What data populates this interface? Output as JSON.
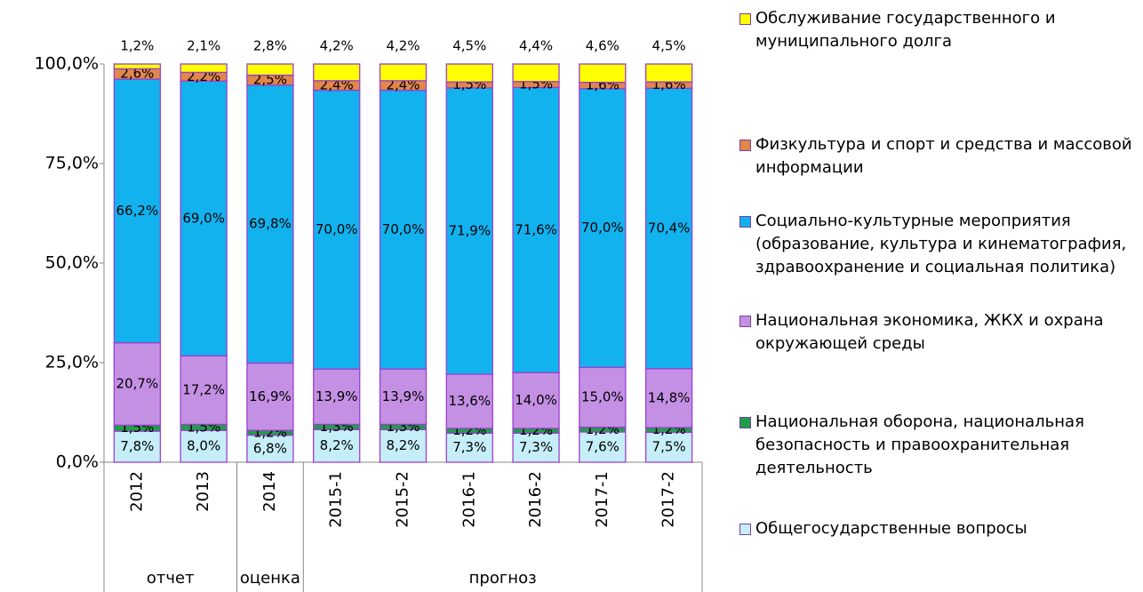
{
  "chart_data": {
    "type": "stacked_bar",
    "categories": [
      "2012",
      "2013",
      "2014",
      "2015-1",
      "2015-2",
      "2016-1",
      "2016-2",
      "2017-1",
      "2017-2"
    ],
    "category_groups": [
      {
        "label": "отчет",
        "span": 2
      },
      {
        "label": "оценка",
        "span": 1
      },
      {
        "label": "прогноз",
        "span": 6
      }
    ],
    "ylim": [
      0,
      100
    ],
    "yticks": [
      {
        "value": 0,
        "label": "0,0%"
      },
      {
        "value": 25,
        "label": "25,0%"
      },
      {
        "value": 50,
        "label": "50,0%"
      },
      {
        "value": 75,
        "label": "75,0%"
      },
      {
        "value": 100,
        "label": "100,0%"
      }
    ],
    "series": [
      {
        "name": "Общегосударственные вопросы",
        "color": "#c6eef8",
        "values": [
          7.8,
          8.0,
          6.8,
          8.2,
          8.2,
          7.3,
          7.3,
          7.6,
          7.5
        ],
        "value_labels": [
          "7,8%",
          "8,0%",
          "6,8%",
          "8,2%",
          "8,2%",
          "7,3%",
          "7,3%",
          "7,6%",
          "7,5%"
        ]
      },
      {
        "name": "Национальная оборона, национальная безопасность и правоохранительная деятельность",
        "color": "#1f9e4a",
        "values": [
          1.5,
          1.5,
          1.2,
          1.3,
          1.3,
          1.2,
          1.2,
          1.2,
          1.2
        ],
        "value_labels": [
          "1,5%",
          "1,5%",
          "1,2%",
          "1,3%",
          "1,3%",
          "1,2%",
          "1,2%",
          "1,2%",
          "1,2%"
        ]
      },
      {
        "name": "Национальная экономика, ЖКХ и охрана окружающей среды",
        "color": "#c490e4",
        "values": [
          20.7,
          17.2,
          16.9,
          13.9,
          13.9,
          13.6,
          14.0,
          15.0,
          14.8
        ],
        "value_labels": [
          "20,7%",
          "17,2%",
          "16,9%",
          "13,9%",
          "13,9%",
          "13,6%",
          "14,0%",
          "15,0%",
          "14,8%"
        ]
      },
      {
        "name": "Социально-культурные мероприятия (образование, культура и кинематография, здравоохранение и социальная политика)",
        "color": "#12b2ef",
        "values": [
          66.2,
          69.0,
          69.8,
          70.0,
          70.0,
          71.9,
          71.6,
          70.0,
          70.4
        ],
        "value_labels": [
          "66,2%",
          "69,0%",
          "69,8%",
          "70,0%",
          "70,0%",
          "71,9%",
          "71,6%",
          "70,0%",
          "70,4%"
        ]
      },
      {
        "name": "Физкультура и спорт и средства и массовой информации",
        "color": "#e0874b",
        "values": [
          2.6,
          2.2,
          2.5,
          2.4,
          2.4,
          1.5,
          1.5,
          1.6,
          1.6
        ],
        "value_labels": [
          "2,6%",
          "2,2%",
          "2,5%",
          "2,4%",
          "2,4%",
          "1,5%",
          "1,5%",
          "1,6%",
          "1,6%"
        ]
      },
      {
        "name": "Обслуживание государственного и муниципального долга",
        "color": "#ffff00",
        "values": [
          1.2,
          2.1,
          2.8,
          4.2,
          4.2,
          4.5,
          4.4,
          4.6,
          4.5
        ],
        "value_labels": [
          "1,2%",
          "2,1%",
          "2,8%",
          "4,2%",
          "4,2%",
          "4,5%",
          "4,4%",
          "4,6%",
          "4,5%"
        ]
      }
    ]
  }
}
